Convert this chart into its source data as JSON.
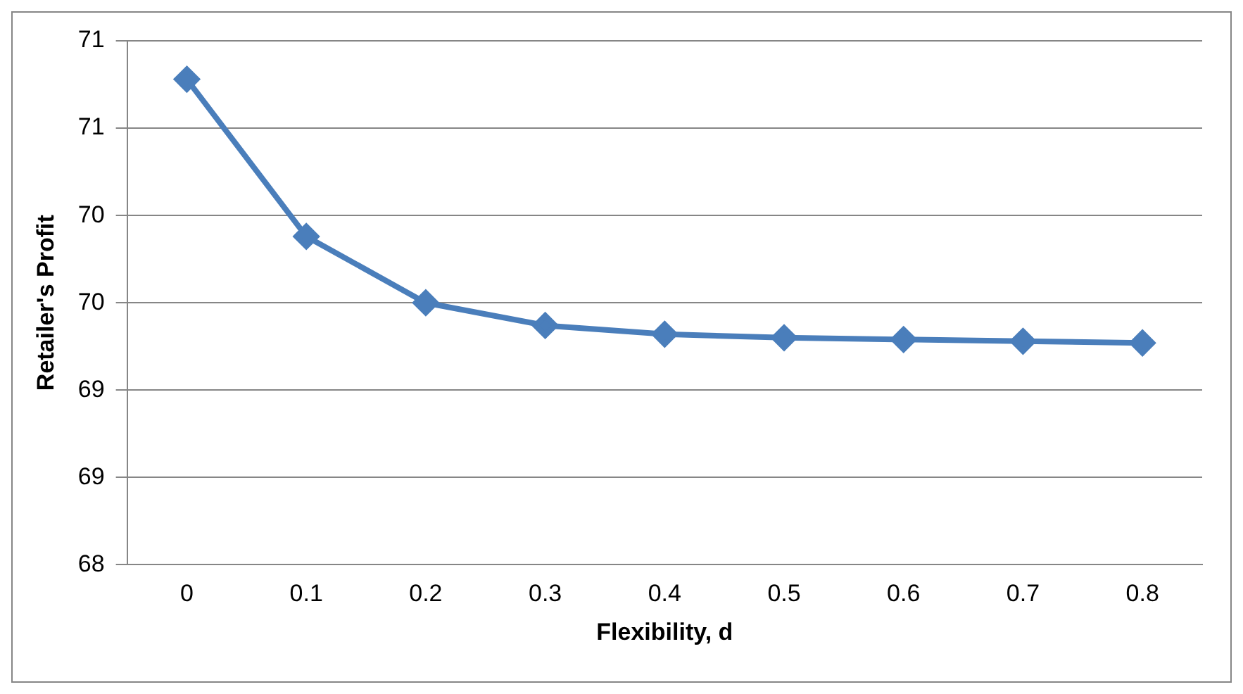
{
  "chart_data": {
    "type": "line",
    "xlabel": "Flexibility, d",
    "ylabel": "Retailer's Profit",
    "categories": [
      "0",
      "0.1",
      "0.2",
      "0.3",
      "0.4",
      "0.5",
      "0.6",
      "0.7",
      "0.8"
    ],
    "series": [
      {
        "color": "#4a7ebb",
        "values": [
          70.78,
          69.88,
          69.5,
          69.37,
          69.32,
          69.3,
          69.29,
          69.28,
          69.27
        ]
      }
    ],
    "ylim": [
      68,
      71
    ],
    "yticks": [
      {
        "value": 68,
        "label": "68"
      },
      {
        "value": 68.5,
        "label": "69"
      },
      {
        "value": 69,
        "label": "69"
      },
      {
        "value": 69.5,
        "label": "70"
      },
      {
        "value": 70,
        "label": "70"
      },
      {
        "value": 70.5,
        "label": "71"
      },
      {
        "value": 71,
        "label": "71"
      }
    ],
    "grid": "y",
    "legend": false,
    "marker": "diamond",
    "line_style": "solid"
  }
}
